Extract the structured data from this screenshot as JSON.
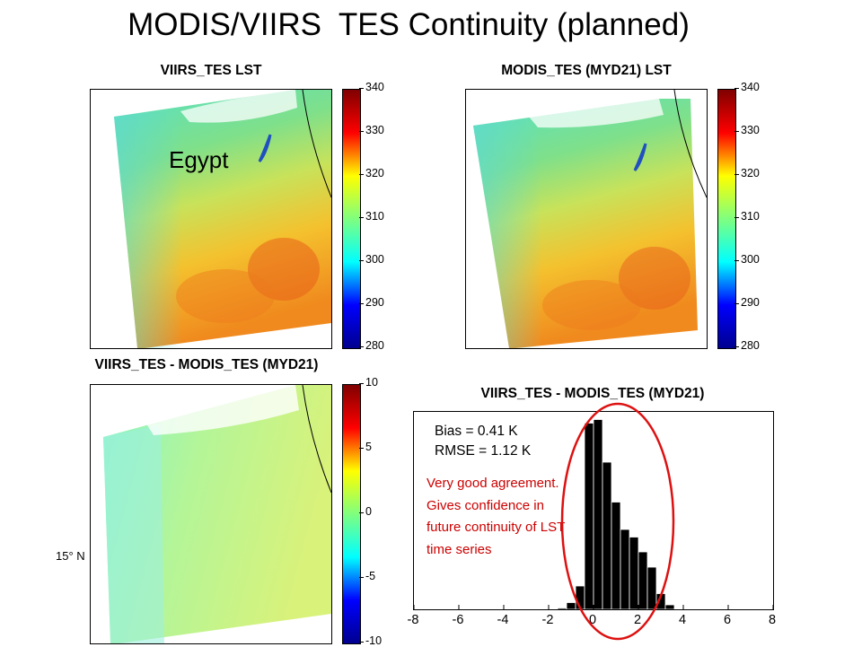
{
  "slide": {
    "title": "MODIS/VIIRS  TES Continuity (planned)"
  },
  "panels": {
    "viirs_lst": {
      "title": "VIIRS_TES LST",
      "annotation": "Egypt",
      "colorbar": {
        "min": 280,
        "max": 340,
        "ticks": [
          "340",
          "330",
          "320",
          "310",
          "300",
          "290",
          "280"
        ]
      }
    },
    "modis_lst": {
      "title": "MODIS_TES (MYD21) LST",
      "colorbar": {
        "min": 280,
        "max": 340,
        "ticks": [
          "340",
          "330",
          "320",
          "310",
          "300",
          "290",
          "280"
        ]
      }
    },
    "difference_map": {
      "title": "VIIRS_TES - MODIS_TES (MYD21)",
      "latitude_label": "15° N",
      "colorbar": {
        "min": -10,
        "max": 10,
        "ticks": [
          "10",
          "5",
          "0",
          "-5",
          "-10"
        ]
      }
    },
    "histogram": {
      "title": "VIIRS_TES - MODIS_TES (MYD21)",
      "bias": "Bias = 0.41 K",
      "rmse": "RMSE = 1.12 K",
      "note": "Very good agreement. Gives confidence in future continuity of LST time series",
      "highlight_color": "#dd1111"
    }
  },
  "colors": {
    "jet_low": "#00008f",
    "jet_mid": "#7fff7f",
    "jet_high": "#800000",
    "bars": "#000000",
    "note_text": "#cc0000"
  },
  "chart_data": {
    "type": "bar",
    "title": "VIIRS_TES - MODIS_TES (MYD21)",
    "xlabel": "",
    "ylabel": "",
    "xlim": [
      -8,
      8
    ],
    "x_ticks": [
      "-8",
      "-6",
      "-4",
      "-2",
      "0",
      "2",
      "4",
      "6",
      "8"
    ],
    "bin_width": 0.4,
    "bin_centers": [
      -1.8,
      -1.4,
      -1.0,
      -0.6,
      -0.2,
      0.2,
      0.6,
      1.0,
      1.4,
      1.8,
      2.2,
      2.6,
      3.0,
      3.4
    ],
    "values": [
      0.1,
      0.3,
      1.5,
      5.2,
      41.5,
      42.3,
      32.8,
      23.9,
      17.8,
      16.1,
      12.8,
      9.4,
      3.5,
      1.0
    ],
    "grid": false,
    "legend": "none"
  }
}
